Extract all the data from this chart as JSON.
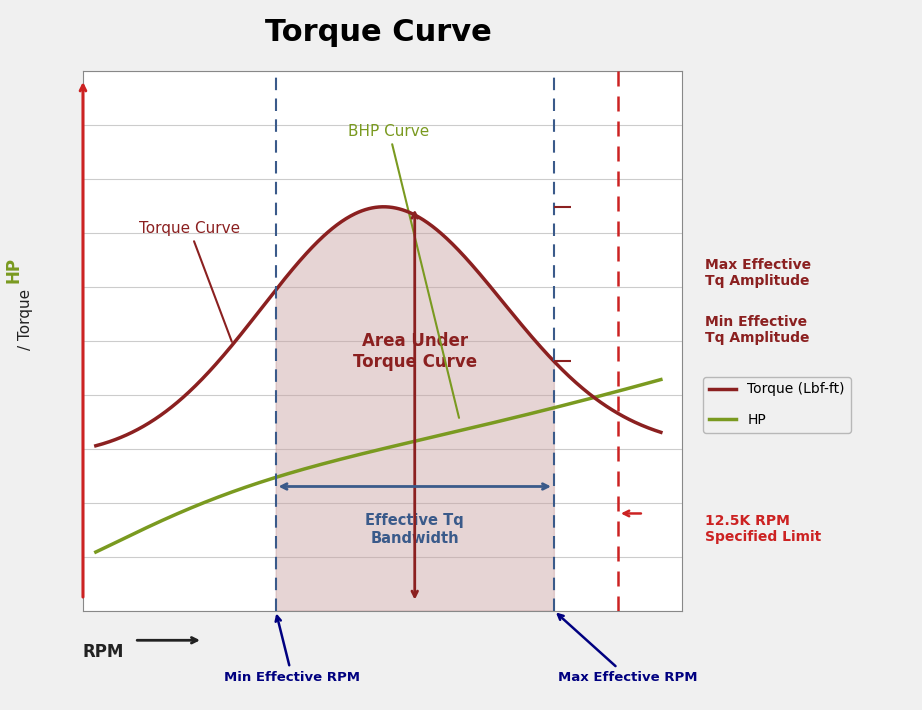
{
  "title": "Torque Curve",
  "title_fontsize": 22,
  "title_fontweight": "bold",
  "background_color": "#f0f0f0",
  "plot_bg_color": "#ffffff",
  "xlim": [
    0,
    14
  ],
  "ylim": [
    0,
    10
  ],
  "grid_color": "#cccccc",
  "torque_color": "#8B2020",
  "hp_color": "#7A9A20",
  "fill_color": "#c8a0a0",
  "fill_alpha": 0.45,
  "dashed_line_color": "#3a5a8a",
  "dashed_limit_color": "#cc2222",
  "min_eff_rpm": 4.5,
  "max_eff_rpm": 11.0,
  "limit_rpm": 12.5,
  "legend_entries": [
    {
      "label": "Torque (Lbf-ft)",
      "color": "#8B2020"
    },
    {
      "label": "HP",
      "color": "#7A9A20"
    }
  ]
}
